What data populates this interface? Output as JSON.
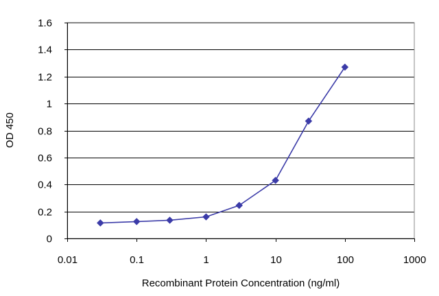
{
  "chart_data": {
    "type": "line",
    "title": "",
    "xlabel": "Recombinant Protein Concentration (ng/ml)",
    "ylabel": "OD 450",
    "x_scale": "log",
    "xlim": [
      0.01,
      1000
    ],
    "ylim": [
      0,
      1.6
    ],
    "x_ticks": [
      0.01,
      0.1,
      1,
      10,
      100,
      1000
    ],
    "x_tick_labels": [
      "0.01",
      "0.1",
      "1",
      "10",
      "100",
      "1000"
    ],
    "y_ticks": [
      0,
      0.2,
      0.4,
      0.6,
      0.8,
      1,
      1.2,
      1.4,
      1.6
    ],
    "y_tick_labels": [
      "0",
      "0.2",
      "0.4",
      "0.6",
      "0.8",
      "1",
      "1.2",
      "1.4",
      "1.6"
    ],
    "grid": "horizontal",
    "legend": "none",
    "series": [
      {
        "color": "#3b3ba8",
        "marker": "diamond",
        "x": [
          0.03,
          0.1,
          0.3,
          1,
          3,
          10,
          30,
          100
        ],
        "y": [
          0.115,
          0.125,
          0.135,
          0.16,
          0.245,
          0.43,
          0.87,
          1.27
        ]
      }
    ],
    "colors": {
      "plot_border": "#888888",
      "gridline": "#000000",
      "series": "#3b3ba8"
    }
  }
}
